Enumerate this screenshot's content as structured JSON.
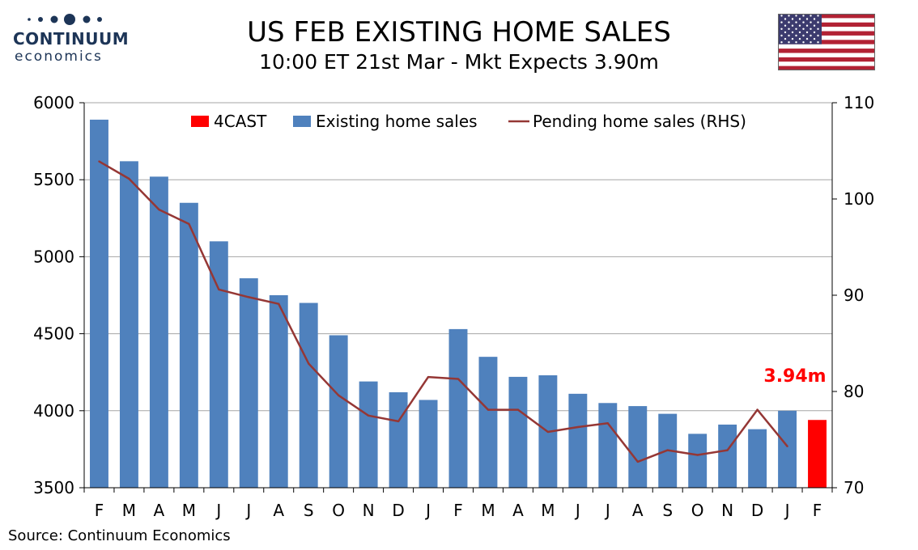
{
  "header": {
    "title": "US FEB EXISTING HOME SALES",
    "subtitle": "10:00 ET 21st Mar - Mkt Expects 3.90m"
  },
  "logo": {
    "brand": "CONTINUUM",
    "sub": "economics",
    "color": "#1d3557"
  },
  "flag": {
    "name": "us-flag-icon"
  },
  "source": "Source: Continuum Economics",
  "chart_data": {
    "type": "bar",
    "categories": [
      "F",
      "M",
      "A",
      "M",
      "J",
      "J",
      "A",
      "S",
      "O",
      "N",
      "D",
      "J",
      "F",
      "M",
      "A",
      "M",
      "J",
      "J",
      "A",
      "S",
      "O",
      "N",
      "D",
      "J",
      "F"
    ],
    "y_left": {
      "min": 3500,
      "max": 6000,
      "ticks": [
        3500,
        4000,
        4500,
        5000,
        5500,
        6000
      ]
    },
    "y_right": {
      "min": 70,
      "max": 110,
      "ticks": [
        70,
        80,
        90,
        100,
        110
      ]
    },
    "grid": true,
    "legend_position": "top",
    "series": [
      {
        "name": "Existing home sales",
        "type": "bar",
        "axis": "left",
        "color": "#4f81bd",
        "values": [
          5890,
          5620,
          5520,
          5350,
          5100,
          4860,
          4750,
          4700,
          4490,
          4190,
          4120,
          4070,
          4530,
          4350,
          4220,
          4230,
          4110,
          4050,
          4030,
          3980,
          3850,
          3910,
          3880,
          4000,
          null
        ]
      },
      {
        "name": "4CAST",
        "type": "bar",
        "axis": "left",
        "color": "#ff0000",
        "values": [
          null,
          null,
          null,
          null,
          null,
          null,
          null,
          null,
          null,
          null,
          null,
          null,
          null,
          null,
          null,
          null,
          null,
          null,
          null,
          null,
          null,
          null,
          null,
          null,
          3940
        ]
      },
      {
        "name": "Pending home sales (RHS)",
        "type": "line",
        "axis": "right",
        "color": "#953735",
        "values": [
          103.9,
          102.1,
          98.9,
          97.4,
          90.6,
          89.8,
          89.1,
          82.9,
          79.6,
          77.5,
          76.9,
          81.5,
          81.3,
          78.1,
          78.1,
          75.8,
          76.3,
          76.7,
          72.7,
          73.9,
          73.4,
          73.9,
          78.1,
          74.3,
          null
        ]
      }
    ],
    "annotation": {
      "text": "3.94m",
      "category_index": 24,
      "color": "#ff0000"
    }
  }
}
